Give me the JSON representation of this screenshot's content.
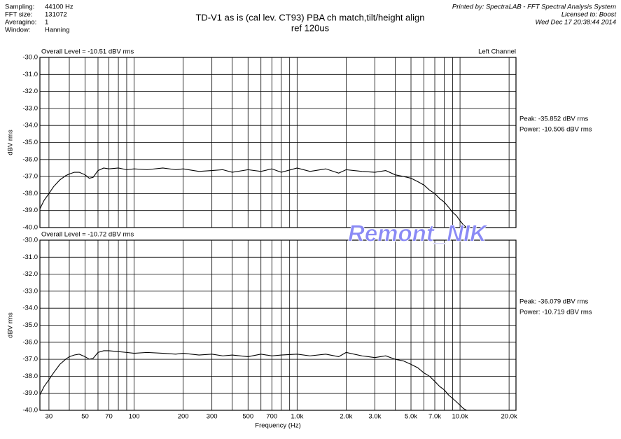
{
  "header": {
    "settings": [
      {
        "label": "Sampling:",
        "value": "44100 Hz"
      },
      {
        "label": "FFT size:",
        "value": "131072"
      },
      {
        "label": "Averagino:",
        "value": "1"
      },
      {
        "label": "Window:",
        "value": "Hanning"
      }
    ],
    "title": [
      "TD-V1 as is (cal lev. CT93) PBA ch match,tilt/height align",
      "ref 120us"
    ],
    "printed_by": "Printed by: SpectraLAB - FFT Spectral Analysis System",
    "licensed_to": "Licensed to: Boost",
    "date": "Wed Dec 17 20:38:44 2014",
    "watermark": "Remont_NIK"
  },
  "chart_data": [
    {
      "type": "line",
      "annotation": "Overall Level = -10.51 dBV rms",
      "channel": "Left Channel",
      "ylabel": "dBV rms",
      "notes": [
        "Peak: -35.852 dBV rms",
        "Power: -10.506 dBV rms"
      ],
      "log_x": true,
      "xlim": [
        26.4,
        22050
      ],
      "ylim": [
        -40,
        -30
      ],
      "yticks": [
        {
          "value": -30,
          "label": "-30.0"
        },
        {
          "value": -31,
          "label": "-31.0"
        },
        {
          "value": -32,
          "label": "-32.0"
        },
        {
          "value": -33,
          "label": "-33.0"
        },
        {
          "value": -34,
          "label": "-34.0"
        },
        {
          "value": -35,
          "label": "-35.0"
        },
        {
          "value": -36,
          "label": "-36.0"
        },
        {
          "value": -37,
          "label": "-37.0"
        },
        {
          "value": -38,
          "label": "-38.0"
        },
        {
          "value": -39,
          "label": "-39.0"
        },
        {
          "value": -40,
          "label": "-40.0"
        }
      ],
      "xgrid": [
        30,
        40,
        50,
        60,
        70,
        80,
        90,
        100,
        200,
        300,
        400,
        500,
        600,
        700,
        800,
        900,
        1000,
        2000,
        3000,
        4000,
        5000,
        6000,
        7000,
        8000,
        9000,
        10000,
        20000
      ],
      "x": [
        26.4,
        28,
        30,
        32,
        35,
        38,
        40,
        43,
        46,
        50,
        53,
        56,
        60,
        65,
        70,
        80,
        90,
        100,
        120,
        150,
        180,
        200,
        250,
        300,
        350,
        400,
        500,
        600,
        700,
        800,
        1000,
        1200,
        1500,
        1800,
        2000,
        2500,
        3000,
        3500,
        4000,
        4500,
        5000,
        5500,
        6000,
        6500,
        7000,
        7500,
        8000,
        8500,
        9000,
        9500,
        10000,
        10500,
        11000
      ],
      "series": [
        {
          "color": "#000000",
          "values": [
            -38.9,
            -38.4,
            -38.0,
            -37.6,
            -37.2,
            -36.95,
            -36.85,
            -36.75,
            -36.75,
            -36.9,
            -37.1,
            -37.05,
            -36.65,
            -36.5,
            -36.55,
            -36.5,
            -36.6,
            -36.55,
            -36.6,
            -36.5,
            -36.6,
            -36.55,
            -36.7,
            -36.65,
            -36.6,
            -36.75,
            -36.6,
            -36.7,
            -36.55,
            -36.75,
            -36.5,
            -36.7,
            -36.55,
            -36.8,
            -36.6,
            -36.7,
            -36.75,
            -36.65,
            -36.9,
            -37.0,
            -37.1,
            -37.3,
            -37.5,
            -37.8,
            -38.0,
            -38.3,
            -38.5,
            -38.8,
            -39.1,
            -39.3,
            -39.6,
            -39.85,
            -40.0
          ]
        }
      ]
    },
    {
      "type": "line",
      "annotation": "Overall Level = -10.72 dBV rms",
      "ylabel": "dBV rms",
      "xlabel": "Frequency (Hz)",
      "notes": [
        "Peak: -36.079 dBV rms",
        "Power: -10.719 dBV rms"
      ],
      "log_x": true,
      "xlim": [
        26.4,
        22050
      ],
      "ylim": [
        -40,
        -30
      ],
      "yticks": [
        {
          "value": -30,
          "label": "-30.0"
        },
        {
          "value": -31,
          "label": "-31.0"
        },
        {
          "value": -32,
          "label": "-32.0"
        },
        {
          "value": -33,
          "label": "-33.0"
        },
        {
          "value": -34,
          "label": "-34.0"
        },
        {
          "value": -35,
          "label": "-35.0"
        },
        {
          "value": -36,
          "label": "-36.0"
        },
        {
          "value": -37,
          "label": "-37.0"
        },
        {
          "value": -38,
          "label": "-38.0"
        },
        {
          "value": -39,
          "label": "-39.0"
        },
        {
          "value": -40,
          "label": "-40.0"
        }
      ],
      "xticks": [
        30,
        50,
        70,
        100,
        200,
        300,
        500,
        700,
        {
          "value": 1000,
          "label": "1.0k"
        },
        {
          "value": 2000,
          "label": "2.0k"
        },
        {
          "value": 3000,
          "label": "3.0k"
        },
        {
          "value": 5000,
          "label": "5.0k"
        },
        {
          "value": 7000,
          "label": "7.0k"
        },
        {
          "value": 10000,
          "label": "10.0k"
        },
        {
          "value": 20000,
          "label": "20.0k"
        }
      ],
      "xgrid": [
        40,
        60,
        80,
        90,
        400,
        600,
        800,
        900,
        4000,
        6000,
        8000,
        9000
      ],
      "x": [
        26.4,
        28,
        30,
        32,
        35,
        38,
        40,
        43,
        46,
        50,
        53,
        56,
        60,
        65,
        70,
        80,
        90,
        100,
        120,
        150,
        180,
        200,
        250,
        300,
        350,
        400,
        500,
        600,
        700,
        800,
        1000,
        1200,
        1500,
        1800,
        2000,
        2500,
        3000,
        3500,
        4000,
        4500,
        5000,
        5500,
        6000,
        6500,
        7000,
        7500,
        8000,
        8500,
        9000,
        9500,
        10000,
        10500,
        11000
      ],
      "series": [
        {
          "color": "#000000",
          "values": [
            -39.1,
            -38.6,
            -38.2,
            -37.8,
            -37.3,
            -37.0,
            -36.85,
            -36.75,
            -36.7,
            -36.85,
            -37.0,
            -36.95,
            -36.6,
            -36.5,
            -36.5,
            -36.55,
            -36.6,
            -36.65,
            -36.6,
            -36.65,
            -36.7,
            -36.65,
            -36.75,
            -36.7,
            -36.8,
            -36.75,
            -36.85,
            -36.7,
            -36.8,
            -36.75,
            -36.7,
            -36.8,
            -36.7,
            -36.85,
            -36.6,
            -36.8,
            -36.9,
            -36.8,
            -37.0,
            -37.1,
            -37.3,
            -37.5,
            -37.8,
            -38.0,
            -38.3,
            -38.6,
            -38.8,
            -39.1,
            -39.3,
            -39.5,
            -39.7,
            -39.9,
            -40.0
          ]
        }
      ]
    }
  ]
}
